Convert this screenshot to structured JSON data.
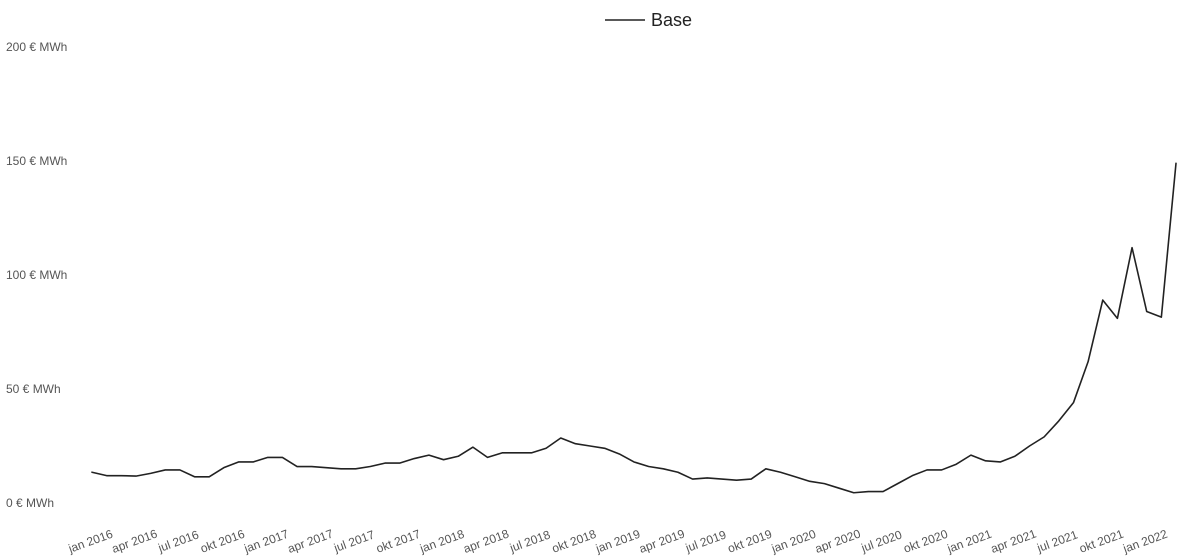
{
  "chart_data": {
    "type": "line",
    "legend": {
      "label": "Base",
      "position": "top-center"
    },
    "x_tick_labels": [
      "jan 2016",
      "apr 2016",
      "jul 2016",
      "okt 2016",
      "jan 2017",
      "apr 2017",
      "jul 2017",
      "okt 2017",
      "jan 2018",
      "apr 2018",
      "jul 2018",
      "okt 2018",
      "jan 2019",
      "apr 2019",
      "jul 2019",
      "okt 2019",
      "jan 2020",
      "apr 2020",
      "jul 2020",
      "okt 2020",
      "jan 2021",
      "apr 2021",
      "jul 2021",
      "okt 2021",
      "jan 2022"
    ],
    "y_ticks": [
      {
        "value": 0,
        "label": "0 € MWh"
      },
      {
        "value": 50,
        "label": "50 € MWh"
      },
      {
        "value": 100,
        "label": "100 € MWh"
      },
      {
        "value": 150,
        "label": "150 € MWh"
      },
      {
        "value": 200,
        "label": "200 € MWh"
      }
    ],
    "ylim": [
      0,
      200
    ],
    "grid": false,
    "series": [
      {
        "name": "Base",
        "color": "#222222",
        "x": [
          "jan 2016",
          "feb 2016",
          "mar 2016",
          "apr 2016",
          "mai 2016",
          "jun 2016",
          "jul 2016",
          "aug 2016",
          "sep 2016",
          "okt 2016",
          "nov 2016",
          "des 2016",
          "jan 2017",
          "feb 2017",
          "mar 2017",
          "apr 2017",
          "mai 2017",
          "jun 2017",
          "jul 2017",
          "aug 2017",
          "sep 2017",
          "okt 2017",
          "nov 2017",
          "des 2017",
          "jan 2018",
          "feb 2018",
          "mar 2018",
          "apr 2018",
          "mai 2018",
          "jun 2018",
          "jul 2018",
          "aug 2018",
          "sep 2018",
          "okt 2018",
          "nov 2018",
          "des 2018",
          "jan 2019",
          "feb 2019",
          "mar 2019",
          "apr 2019",
          "mai 2019",
          "jun 2019",
          "jul 2019",
          "aug 2019",
          "sep 2019",
          "okt 2019",
          "nov 2019",
          "des 2019",
          "jan 2020",
          "feb 2020",
          "mar 2020",
          "apr 2020",
          "mai 2020",
          "jun 2020",
          "jul 2020",
          "aug 2020",
          "sep 2020",
          "okt 2020",
          "nov 2020",
          "des 2020",
          "jan 2021",
          "feb 2021",
          "mar 2021",
          "apr 2021",
          "mai 2021",
          "jun 2021",
          "jul 2021",
          "aug 2021",
          "sep 2021",
          "okt 2021",
          "nov 2021",
          "des 2021",
          "jan 2022",
          "feb 2022",
          "mar 2022"
        ],
        "values": [
          13.5,
          12,
          12,
          11.8,
          13,
          14.5,
          14.5,
          11.5,
          11.5,
          15.5,
          18,
          18,
          20,
          20,
          16,
          16,
          15.5,
          15,
          15,
          16,
          17.5,
          17.5,
          19.5,
          21,
          19,
          20.5,
          24.5,
          20,
          22,
          22,
          22,
          24,
          28.5,
          26,
          25,
          24,
          21.5,
          18,
          16,
          15,
          13.5,
          10.5,
          11,
          10.5,
          10,
          10.5,
          15,
          13.5,
          11.5,
          9.5,
          8.5,
          6.5,
          4.5,
          5,
          5,
          8.5,
          12,
          14.5,
          14.5,
          17,
          21,
          18.5,
          18,
          20.5,
          25,
          29,
          36,
          44,
          62,
          89,
          81,
          112,
          84,
          81.5,
          149
        ]
      }
    ]
  }
}
